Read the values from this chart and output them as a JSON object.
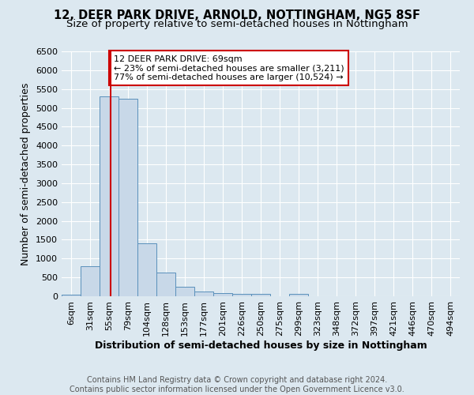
{
  "title_line1": "12, DEER PARK DRIVE, ARNOLD, NOTTINGHAM, NG5 8SF",
  "title_line2": "Size of property relative to semi-detached houses in Nottingham",
  "xlabel": "Distribution of semi-detached houses by size in Nottingham",
  "ylabel": "Number of semi-detached properties",
  "footer_line1": "Contains HM Land Registry data © Crown copyright and database right 2024.",
  "footer_line2": "Contains public sector information licensed under the Open Government Licence v3.0.",
  "categories": [
    "6sqm",
    "31sqm",
    "55sqm",
    "79sqm",
    "104sqm",
    "128sqm",
    "153sqm",
    "177sqm",
    "201sqm",
    "226sqm",
    "250sqm",
    "275sqm",
    "299sqm",
    "323sqm",
    "348sqm",
    "372sqm",
    "397sqm",
    "421sqm",
    "446sqm",
    "470sqm",
    "494sqm"
  ],
  "values": [
    50,
    800,
    5300,
    5250,
    1400,
    625,
    260,
    130,
    80,
    60,
    60,
    0,
    60,
    0,
    0,
    0,
    0,
    0,
    0,
    0,
    0
  ],
  "bar_color": "#c8d8e8",
  "bar_edge_color": "#5a90bb",
  "property_label": "12 DEER PARK DRIVE: 69sqm",
  "pct_smaller": 23,
  "count_smaller": 3211,
  "pct_larger": 77,
  "count_larger": 10524,
  "vline_color": "#cc0000",
  "annotation_box_edge": "#cc0000",
  "ylim": [
    0,
    6500
  ],
  "yticks": [
    0,
    500,
    1000,
    1500,
    2000,
    2500,
    3000,
    3500,
    4000,
    4500,
    5000,
    5500,
    6000,
    6500
  ],
  "bg_color": "#dce8f0",
  "grid_color": "#ffffff",
  "title_fontsize": 10.5,
  "subtitle_fontsize": 9.5,
  "label_fontsize": 9,
  "tick_fontsize": 8,
  "annot_fontsize": 8,
  "footer_fontsize": 7
}
